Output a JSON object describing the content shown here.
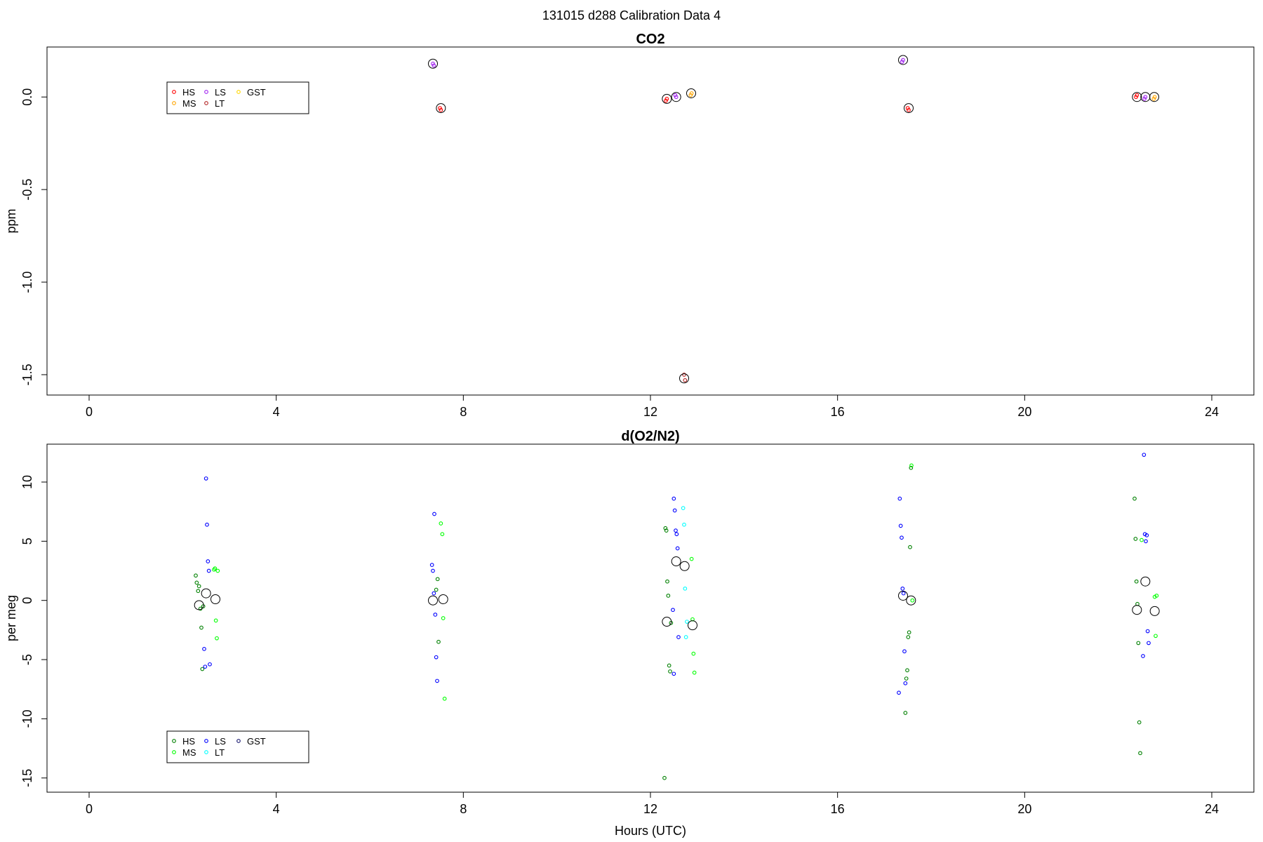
{
  "page_title": "131015   d288   Calibration Data 4",
  "chart_data": [
    {
      "type": "scatter",
      "title": "CO2",
      "xlabel": "",
      "ylabel": "ppm",
      "xlim": [
        -0.9,
        24.9
      ],
      "ylim": [
        -1.61,
        0.27
      ],
      "xticks": [
        0,
        4,
        8,
        12,
        16,
        20,
        24
      ],
      "yticks": [
        0.0,
        -0.5,
        -1.0,
        -1.5
      ],
      "ytick_labels": [
        "0.0",
        "-0.5",
        "-1.0",
        "-1.5"
      ],
      "legend_position": "top-left",
      "series": [
        {
          "name": "HS",
          "color": "#ff0000",
          "x": [
            7.5,
            7.52,
            12.35,
            12.33,
            17.5,
            17.52,
            22.38,
            22.4
          ],
          "y": [
            -0.06,
            -0.07,
            -0.01,
            -0.02,
            -0.06,
            -0.07,
            0.0,
            0.01
          ]
        },
        {
          "name": "MS",
          "color": "#ffa500",
          "x": [
            12.88,
            12.86,
            22.78,
            22.76
          ],
          "y": [
            0.02,
            0.01,
            0.0,
            -0.01
          ]
        },
        {
          "name": "LS",
          "color": "#a020f0",
          "x": [
            7.35,
            7.37,
            12.55,
            12.53,
            17.4,
            17.38,
            22.58,
            22.56
          ],
          "y": [
            0.18,
            0.17,
            0.0,
            0.01,
            0.2,
            0.19,
            0.0,
            -0.01
          ]
        },
        {
          "name": "LT",
          "color": "#b22222",
          "x": [
            12.72,
            12.74
          ],
          "y": [
            -1.5,
            -1.53
          ]
        },
        {
          "name": "GST",
          "color": "#ffd700",
          "x": [],
          "y": []
        }
      ],
      "means": {
        "color": "#000000",
        "x": [
          7.35,
          7.52,
          12.35,
          12.55,
          12.72,
          12.87,
          17.4,
          17.52,
          22.4,
          22.58,
          22.77
        ],
        "y": [
          0.18,
          -0.06,
          -0.01,
          0.0,
          -1.52,
          0.02,
          0.2,
          -0.06,
          0.0,
          0.0,
          0.0
        ]
      }
    },
    {
      "type": "scatter",
      "title": "d(O2/N2)",
      "xlabel": "Hours (UTC)",
      "ylabel": "per meg",
      "xlim": [
        -0.9,
        24.9
      ],
      "ylim": [
        -16.2,
        13.2
      ],
      "xticks": [
        0,
        4,
        8,
        12,
        16,
        20,
        24
      ],
      "yticks": [
        10,
        5,
        0,
        -5,
        -10,
        -15
      ],
      "ytick_labels": [
        "10",
        "5",
        "0",
        "-5",
        "-10",
        "-15"
      ],
      "legend_position": "bottom-left",
      "series": [
        {
          "name": "HS",
          "color": "#008000",
          "x": [
            2.28,
            2.3,
            2.33,
            2.35,
            2.38,
            2.4,
            2.42,
            2.44,
            7.42,
            7.45,
            7.47,
            12.3,
            12.32,
            12.34,
            12.36,
            12.38,
            12.4,
            12.42,
            12.44,
            17.45,
            17.47,
            17.49,
            17.51,
            17.53,
            17.55,
            17.57,
            22.35,
            22.37,
            22.39,
            22.41,
            22.43,
            22.45,
            22.47
          ],
          "y": [
            2.1,
            1.5,
            0.8,
            1.2,
            -0.7,
            -2.3,
            -5.8,
            -0.5,
            0.9,
            1.8,
            -3.5,
            -15.0,
            6.1,
            5.9,
            1.6,
            0.4,
            -5.5,
            -6.0,
            -1.9,
            -9.5,
            -6.6,
            -5.9,
            -3.1,
            -2.7,
            4.5,
            11.2,
            8.6,
            5.2,
            1.6,
            -0.3,
            -3.6,
            -10.3,
            -12.9
          ]
        },
        {
          "name": "MS",
          "color": "#00ff00",
          "x": [
            2.67,
            2.69,
            2.71,
            2.73,
            2.75,
            7.52,
            7.55,
            7.57,
            7.6,
            12.88,
            12.9,
            12.92,
            12.94,
            17.58,
            17.6,
            22.5,
            22.78,
            22.8,
            22.82
          ],
          "y": [
            2.6,
            2.7,
            -1.7,
            -3.2,
            2.5,
            6.5,
            5.6,
            -1.5,
            -8.3,
            3.5,
            -1.6,
            -4.5,
            -6.1,
            11.4,
            0.0,
            5.1,
            0.3,
            -3.0,
            0.4
          ]
        },
        {
          "name": "LS",
          "color": "#0000ff",
          "x": [
            2.5,
            2.52,
            2.54,
            2.56,
            2.58,
            2.48,
            2.46,
            7.33,
            7.35,
            7.37,
            7.4,
            7.42,
            7.44,
            7.38,
            12.5,
            12.52,
            12.54,
            12.56,
            12.58,
            12.6,
            12.5,
            12.48,
            17.33,
            17.35,
            17.37,
            17.39,
            17.41,
            17.43,
            17.45,
            17.31,
            22.55,
            22.57,
            22.59,
            22.61,
            22.63,
            22.65,
            22.53
          ],
          "y": [
            10.3,
            6.4,
            3.3,
            2.5,
            -5.4,
            -5.6,
            -4.1,
            3.0,
            2.5,
            0.6,
            -1.2,
            -4.8,
            -6.8,
            7.3,
            8.6,
            7.6,
            5.9,
            5.6,
            4.4,
            -3.1,
            -6.2,
            -0.8,
            8.6,
            6.3,
            5.3,
            1.0,
            0.6,
            -4.3,
            -7.0,
            -7.8,
            12.3,
            5.6,
            5.0,
            5.5,
            -2.6,
            -3.6,
            -4.7
          ]
        },
        {
          "name": "LT",
          "color": "#00ffff",
          "x": [
            12.7,
            12.72,
            12.74,
            12.76,
            12.78
          ],
          "y": [
            7.8,
            6.4,
            1.0,
            -3.1,
            -1.8
          ]
        },
        {
          "name": "GST",
          "color": "#191970",
          "x": [],
          "y": []
        }
      ],
      "means": {
        "color": "#000000",
        "x": [
          2.35,
          2.5,
          2.7,
          7.35,
          7.57,
          12.35,
          12.55,
          12.73,
          12.9,
          17.4,
          17.57,
          22.4,
          22.58,
          22.78
        ],
        "y": [
          -0.4,
          0.6,
          0.1,
          0.0,
          0.1,
          -1.8,
          3.3,
          2.9,
          -2.1,
          0.4,
          0.0,
          -0.8,
          1.6,
          -0.9
        ]
      }
    }
  ]
}
